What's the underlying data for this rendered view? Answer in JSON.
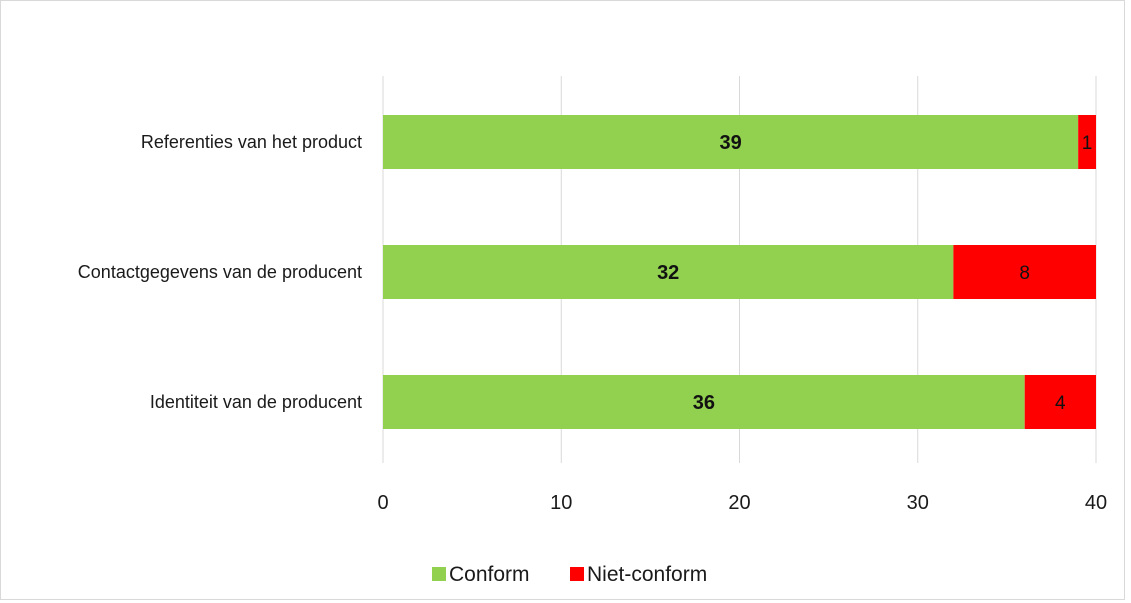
{
  "chart_data": {
    "type": "bar",
    "orientation": "horizontal",
    "stacked": true,
    "categories": [
      "Referenties van het product",
      "Contactgegevens van de producent",
      "Identiteit van de producent"
    ],
    "series": [
      {
        "name": "Conform",
        "values": [
          39,
          32,
          36
        ],
        "color": "#92d050"
      },
      {
        "name": "Niet-conform",
        "values": [
          1,
          8,
          4
        ],
        "color": "#ff0000"
      }
    ],
    "xlim": [
      0,
      40
    ],
    "xticks": [
      "0",
      "10",
      "20",
      "30",
      "40"
    ],
    "grid": true,
    "legend": "bottom",
    "title": "",
    "xlabel": "",
    "ylabel": ""
  }
}
